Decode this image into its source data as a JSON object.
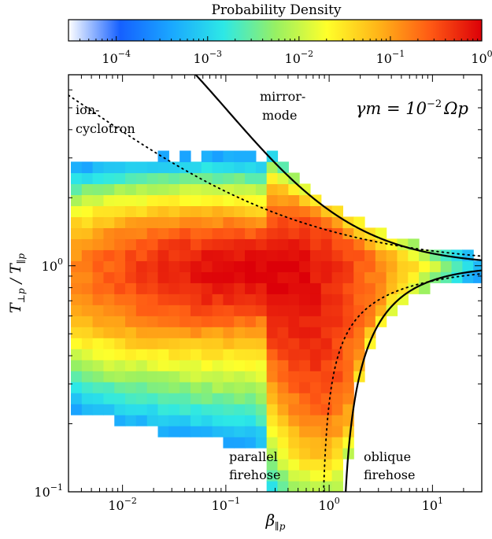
{
  "chart_data": {
    "type": "heatmap",
    "colorbar": {
      "label": "Probability Density",
      "scale": "log",
      "range": [
        3e-05,
        1
      ],
      "ticks": [
        {
          "value": 0.0001,
          "base": "10",
          "exp": "−4"
        },
        {
          "value": 0.001,
          "base": "10",
          "exp": "−3"
        },
        {
          "value": 0.01,
          "base": "10",
          "exp": "−2"
        },
        {
          "value": 0.1,
          "base": "10",
          "exp": "−1"
        },
        {
          "value": 1,
          "base": "10",
          "exp": "0"
        }
      ],
      "colormap": [
        "#ffffff",
        "#1560ff",
        "#1aa8ff",
        "#2de8e6",
        "#96f064",
        "#ffff2a",
        "#ffb418",
        "#ff5a14",
        "#dc0008"
      ]
    },
    "xaxis": {
      "label": "β∥p",
      "scale": "log",
      "range": [
        0.003,
        30
      ],
      "ticks": [
        {
          "value": 0.01,
          "base": "10",
          "exp": "−2"
        },
        {
          "value": 0.1,
          "base": "10",
          "exp": "−1"
        },
        {
          "value": 1,
          "base": "10",
          "exp": "0"
        },
        {
          "value": 10,
          "base": "10",
          "exp": "1"
        }
      ]
    },
    "yaxis": {
      "label": "T⊥p / T∥p",
      "scale": "log",
      "range": [
        0.1,
        7
      ],
      "ticks": [
        {
          "value": 0.1,
          "label": "10",
          "exp": "−1"
        },
        {
          "value": 1,
          "label": "10",
          "exp": "0"
        }
      ]
    },
    "annotation": {
      "lhs": "γm = 10",
      "exp": "−2",
      "rhs": "Ωp"
    },
    "region_labels": [
      {
        "lines": [
          "ion-",
          "cyclotron"
        ]
      },
      {
        "lines": [
          "mirror-",
          "mode"
        ]
      },
      {
        "lines": [
          "parallel",
          "firehose"
        ]
      },
      {
        "lines": [
          "oblique",
          "firehose"
        ]
      }
    ],
    "thresholds": [
      {
        "name": "mirror",
        "style": "solid",
        "a": 0.77,
        "b": 0.76,
        "beta0": -0.016
      },
      {
        "name": "ion-cyclotron",
        "style": "dotted",
        "a": 0.43,
        "b": 0.42,
        "beta0": -0.0004
      },
      {
        "name": "parallel-firehose",
        "style": "dotted",
        "a": -0.47,
        "b": 0.53,
        "beta0": 0.59
      },
      {
        "name": "oblique-firehose",
        "style": "solid",
        "a": -1.4,
        "b": 1.0,
        "beta0": -0.11
      }
    ],
    "grid": {
      "log_beta_min": -2.5,
      "log_beta_max": 1.5,
      "bins_beta": 38,
      "log_ratio_min": -1,
      "log_ratio_max": 0.85,
      "bins_ratio": 38,
      "peak": {
        "log_beta": -0.6,
        "log_ratio": -0.02
      },
      "firehose_peak_offset": 0.04
    }
  }
}
